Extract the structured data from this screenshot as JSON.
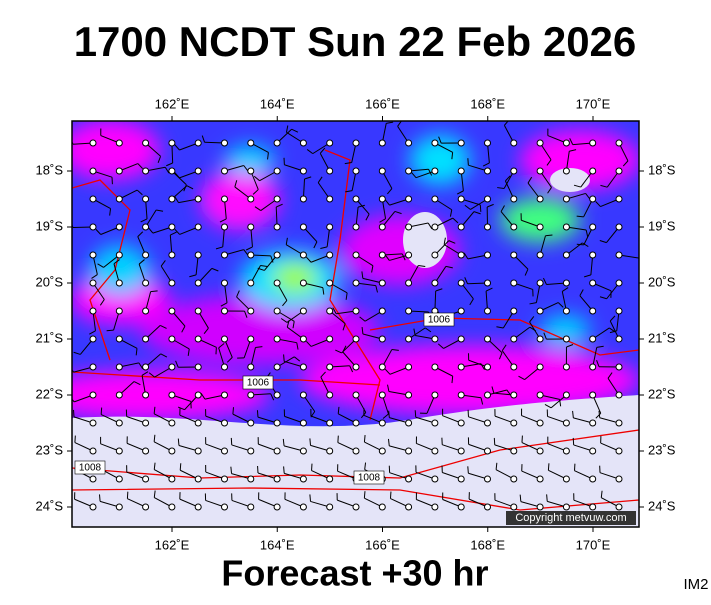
{
  "title": "1700 NCDT Sun 22 Feb 2026",
  "footer": "Forecast +30 hr",
  "corner_label": "IM2",
  "copyright": "Copyright metvuw.com",
  "map": {
    "lon_ticks": [
      {
        "value": 162,
        "label": "162˚E"
      },
      {
        "value": 164,
        "label": "164˚E"
      },
      {
        "value": 166,
        "label": "166˚E"
      },
      {
        "value": 168,
        "label": "168˚E"
      },
      {
        "value": 170,
        "label": "170˚E"
      }
    ],
    "lat_ticks": [
      {
        "value": 18,
        "label": "18˚S"
      },
      {
        "value": 19,
        "label": "19˚S"
      },
      {
        "value": 20,
        "label": "20˚S"
      },
      {
        "value": 21,
        "label": "21˚S"
      },
      {
        "value": 22,
        "label": "22˚S"
      },
      {
        "value": 23,
        "label": "23˚S"
      },
      {
        "value": 24,
        "label": "24˚S"
      }
    ],
    "isobar_labels": [
      "1006",
      "1006",
      "1008",
      "1008"
    ]
  }
}
